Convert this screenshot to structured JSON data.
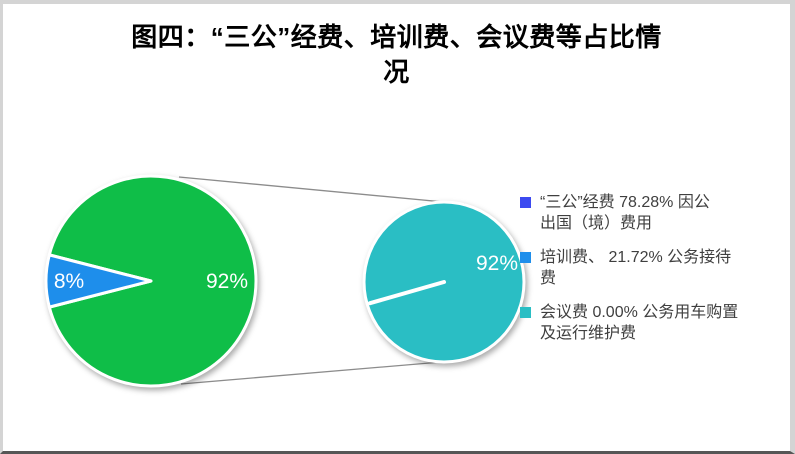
{
  "title": {
    "lines": [
      "图四：“三公”经费、培训费、会议费等占比情",
      "况"
    ],
    "text": "图四：“三公”经费、培训费、会议费等占比情况"
  },
  "legend": {
    "items": [
      {
        "label": "“三公”经费 78.28% 因公出国（境）费用",
        "lines": [
          "“三公”经费 78.28% 因公",
          "出国（境）费用"
        ],
        "color": "#3c4af0"
      },
      {
        "label": "培训费、 21.72% 公务接待费",
        "lines": [
          "培训费、 21.72% 公务接待",
          "费"
        ],
        "color": "#1e8eeb"
      },
      {
        "label": "会议费 0.00% 公务用车购置及运行维护费",
        "lines": [
          "会议费 0.00% 公务用车购置",
          "及运行维护费"
        ],
        "color": "#2abec4"
      }
    ]
  },
  "chart_data": {
    "type": "pie",
    "subtype": "pie-of-pie",
    "title": "图四：“三公”经费、培训费、会议费等占比情况",
    "main_pie": {
      "slices": [
        {
          "name": "major",
          "value": 92,
          "label": "92%",
          "color": "#0fbe48"
        },
        {
          "name": "minor",
          "value": 8,
          "label": "8%",
          "color": "#1e8eeb"
        }
      ]
    },
    "secondary_pie": {
      "slices": [
        {
          "name": "major",
          "value": 92,
          "label": "92%",
          "color": "#2abec4"
        },
        {
          "name": "zero",
          "value": 0,
          "label": "",
          "color": "#2abec4"
        }
      ]
    },
    "legend_position": "right",
    "legend_entries": [
      "“三公”经费 78.28% 因公出国（境）费用",
      "培训费、 21.72% 公务接待费",
      "会议费 0.00% 公务用车购置及运行维护费"
    ],
    "percent_values": {
      "three_public": "78.28%",
      "training": "21.72%",
      "meeting": "0.00%"
    },
    "connector_color": "#8c8c8c",
    "label_color": "#ffffff"
  }
}
